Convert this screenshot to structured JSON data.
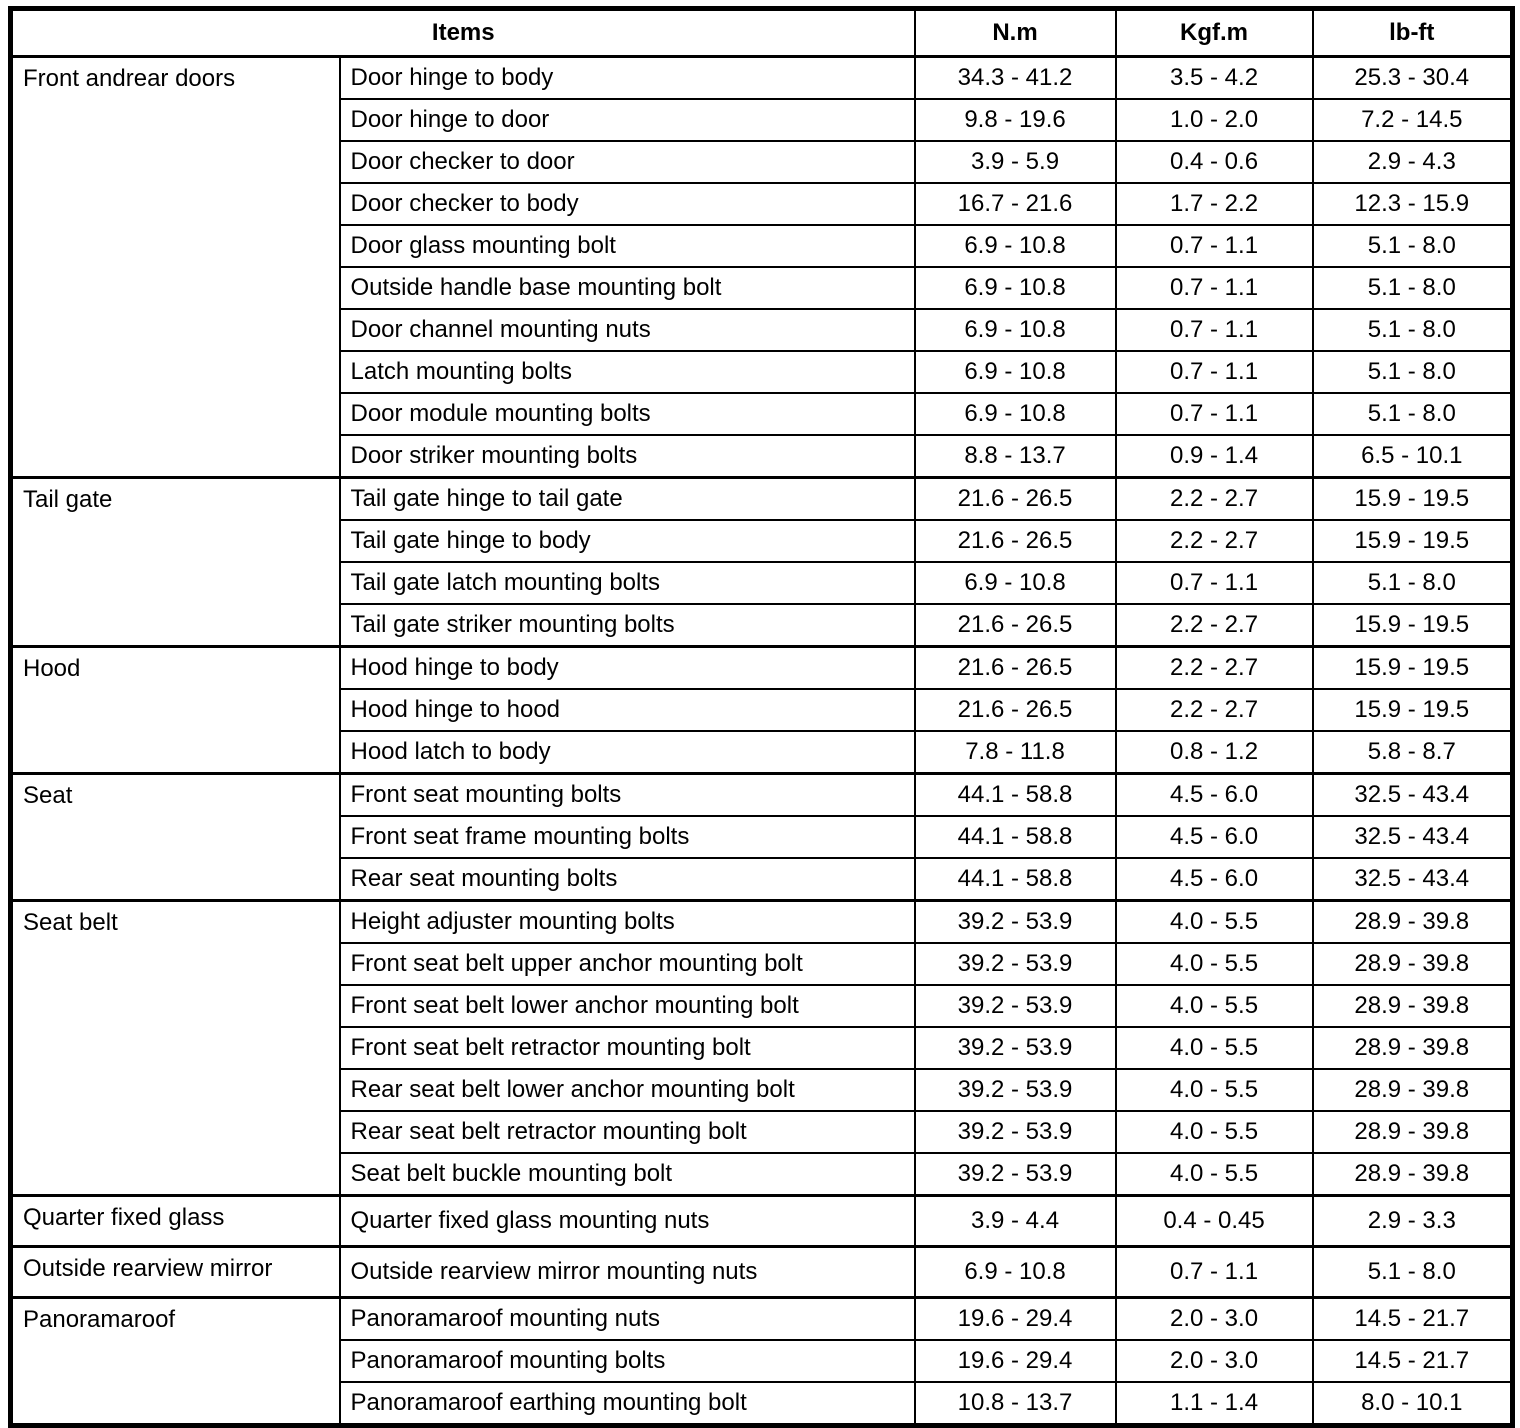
{
  "table": {
    "headers": {
      "items": "Items",
      "nm": "N.m",
      "kgfm": "Kgf.m",
      "lbft": "lb-ft"
    },
    "sections": [
      {
        "category": "Front andrear doors",
        "rows": [
          {
            "item": "Door hinge to body",
            "nm": "34.3 - 41.2",
            "kgfm": "3.5 - 4.2",
            "lbft": "25.3 - 30.4"
          },
          {
            "item": "Door hinge to door",
            "nm": "9.8 - 19.6",
            "kgfm": "1.0 - 2.0",
            "lbft": "7.2 - 14.5"
          },
          {
            "item": "Door checker to door",
            "nm": "3.9 - 5.9",
            "kgfm": "0.4 - 0.6",
            "lbft": "2.9 - 4.3"
          },
          {
            "item": "Door checker to body",
            "nm": "16.7 - 21.6",
            "kgfm": "1.7 - 2.2",
            "lbft": "12.3 - 15.9"
          },
          {
            "item": "Door glass mounting bolt",
            "nm": "6.9 - 10.8",
            "kgfm": "0.7 - 1.1",
            "lbft": "5.1 - 8.0"
          },
          {
            "item": "Outside handle base mounting bolt",
            "nm": "6.9 - 10.8",
            "kgfm": "0.7 - 1.1",
            "lbft": "5.1 - 8.0"
          },
          {
            "item": "Door channel mounting nuts",
            "nm": "6.9 - 10.8",
            "kgfm": "0.7 - 1.1",
            "lbft": "5.1 - 8.0"
          },
          {
            "item": "Latch mounting bolts",
            "nm": "6.9 - 10.8",
            "kgfm": "0.7 - 1.1",
            "lbft": "5.1 - 8.0"
          },
          {
            "item": "Door module mounting bolts",
            "nm": "6.9 - 10.8",
            "kgfm": "0.7 - 1.1",
            "lbft": "5.1 - 8.0"
          },
          {
            "item": "Door striker mounting bolts",
            "nm": "8.8 - 13.7",
            "kgfm": "0.9 - 1.4",
            "lbft": "6.5 - 10.1"
          }
        ]
      },
      {
        "category": "Tail gate",
        "rows": [
          {
            "item": "Tail gate hinge to tail gate",
            "nm": "21.6 - 26.5",
            "kgfm": "2.2 - 2.7",
            "lbft": "15.9 - 19.5"
          },
          {
            "item": "Tail gate hinge to body",
            "nm": "21.6 - 26.5",
            "kgfm": "2.2 - 2.7",
            "lbft": "15.9 - 19.5"
          },
          {
            "item": "Tail gate latch mounting bolts",
            "nm": "6.9 - 10.8",
            "kgfm": "0.7 - 1.1",
            "lbft": "5.1 - 8.0"
          },
          {
            "item": "Tail gate striker mounting bolts",
            "nm": "21.6 - 26.5",
            "kgfm": "2.2 - 2.7",
            "lbft": "15.9 - 19.5"
          }
        ]
      },
      {
        "category": "Hood",
        "rows": [
          {
            "item": "Hood hinge to body",
            "nm": "21.6 - 26.5",
            "kgfm": "2.2 - 2.7",
            "lbft": "15.9 - 19.5"
          },
          {
            "item": "Hood hinge to hood",
            "nm": "21.6 - 26.5",
            "kgfm": "2.2 - 2.7",
            "lbft": "15.9 - 19.5"
          },
          {
            "item": "Hood latch to body",
            "nm": "7.8 - 11.8",
            "kgfm": "0.8 - 1.2",
            "lbft": "5.8 - 8.7"
          }
        ]
      },
      {
        "category": "Seat",
        "rows": [
          {
            "item": "Front seat mounting bolts",
            "nm": "44.1 - 58.8",
            "kgfm": "4.5 - 6.0",
            "lbft": "32.5 - 43.4"
          },
          {
            "item": "Front seat frame mounting bolts",
            "nm": "44.1 - 58.8",
            "kgfm": "4.5 - 6.0",
            "lbft": "32.5 - 43.4"
          },
          {
            "item": "Rear seat mounting bolts",
            "nm": "44.1 - 58.8",
            "kgfm": "4.5 - 6.0",
            "lbft": "32.5 - 43.4"
          }
        ]
      },
      {
        "category": "Seat belt",
        "rows": [
          {
            "item": "Height adjuster mounting bolts",
            "nm": "39.2 - 53.9",
            "kgfm": "4.0 - 5.5",
            "lbft": "28.9 - 39.8"
          },
          {
            "item": "Front seat belt upper anchor mounting bolt",
            "nm": "39.2 - 53.9",
            "kgfm": "4.0 - 5.5",
            "lbft": "28.9 - 39.8"
          },
          {
            "item": "Front seat belt lower anchor mounting bolt",
            "nm": "39.2 - 53.9",
            "kgfm": "4.0 - 5.5",
            "lbft": "28.9 - 39.8"
          },
          {
            "item": "Front seat belt retractor mounting bolt",
            "nm": "39.2 - 53.9",
            "kgfm": "4.0 - 5.5",
            "lbft": "28.9 - 39.8"
          },
          {
            "item": "Rear seat belt lower anchor mounting bolt",
            "nm": "39.2 - 53.9",
            "kgfm": "4.0 - 5.5",
            "lbft": "28.9 - 39.8"
          },
          {
            "item": "Rear seat belt retractor mounting bolt",
            "nm": "39.2 - 53.9",
            "kgfm": "4.0 - 5.5",
            "lbft": "28.9 - 39.8"
          },
          {
            "item": "Seat belt buckle mounting bolt",
            "nm": "39.2 - 53.9",
            "kgfm": "4.0 - 5.5",
            "lbft": "28.9 - 39.8"
          }
        ]
      },
      {
        "category": "Quarter fixed glass",
        "rows": [
          {
            "item": "Quarter fixed glass mounting nuts",
            "nm": "3.9 - 4.4",
            "kgfm": "0.4 - 0.45",
            "lbft": "2.9 - 3.3"
          }
        ]
      },
      {
        "category": "Outside rearview mirror",
        "rows": [
          {
            "item": "Outside rearview mirror mounting nuts",
            "nm": "6.9 - 10.8",
            "kgfm": "0.7 - 1.1",
            "lbft": "5.1 - 8.0"
          }
        ]
      },
      {
        "category": "Panoramaroof",
        "rows": [
          {
            "item": "Panoramaroof mounting nuts",
            "nm": "19.6 - 29.4",
            "kgfm": "2.0 - 3.0",
            "lbft": "14.5 - 21.7"
          },
          {
            "item": "Panoramaroof mounting bolts",
            "nm": "19.6 - 29.4",
            "kgfm": "2.0 - 3.0",
            "lbft": "14.5 - 21.7"
          },
          {
            "item": "Panoramaroof earthing mounting bolt",
            "nm": "10.8 - 13.7",
            "kgfm": "1.1 - 1.4",
            "lbft": "8.0 - 10.1"
          }
        ]
      }
    ]
  }
}
